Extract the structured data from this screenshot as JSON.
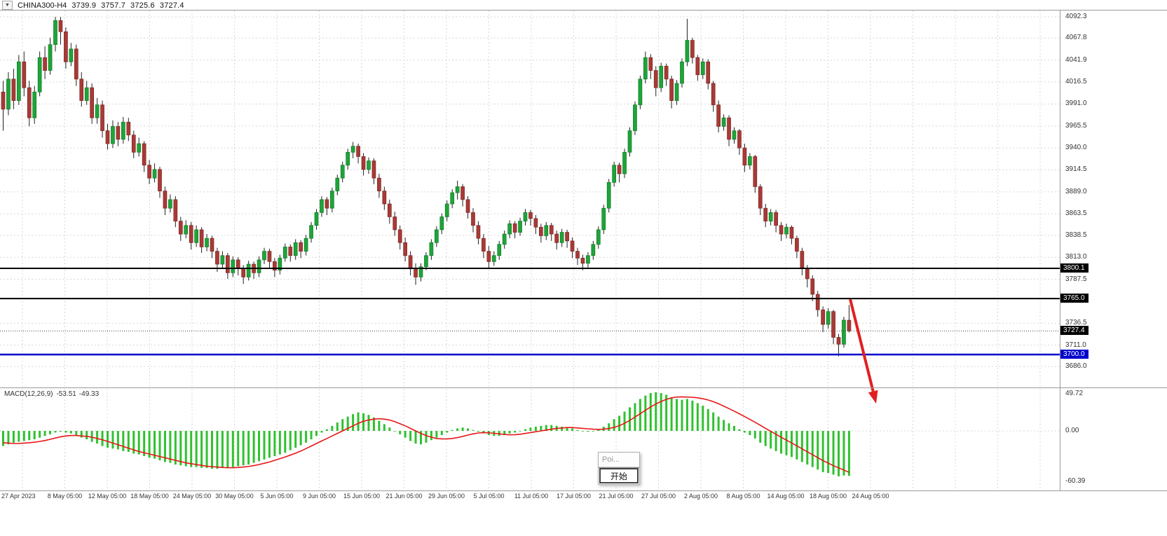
{
  "symbol_info": {
    "dropdown_icon": "▼",
    "symbol": "CHINA300-H4",
    "open": "3739.9",
    "high": "3757.7",
    "low": "3725.6",
    "close": "3727.4"
  },
  "price_scale": {
    "labels": [
      "4092.3",
      "4067.8",
      "4041.9",
      "4016.5",
      "3991.0",
      "3965.5",
      "3940.0",
      "3914.5",
      "3889.0",
      "3863.5",
      "3838.5",
      "3813.0",
      "3787.5",
      "3736.5",
      "3711.0",
      "3686.0"
    ],
    "badges": [
      {
        "value": "3800.1",
        "price": 3800.1,
        "color": "#000000"
      },
      {
        "value": "3765.0",
        "price": 3765.0,
        "color": "#000000"
      },
      {
        "value": "3727.4",
        "price": 3727.4,
        "color": "#000000"
      },
      {
        "value": "3700.0",
        "price": 3700.0,
        "color": "#0000CD"
      }
    ]
  },
  "macd": {
    "title": "MACD(12,26,9)",
    "value": "-53.51",
    "signal_value": "-49.33",
    "scale": {
      "top": "49.72",
      "zero": "0.00",
      "bottom": "-60.39"
    }
  },
  "popup": {
    "title": "Poi...",
    "button_label": "开始"
  },
  "colors": {
    "up_candle": "#1FA439",
    "up_candle_border": "#0F7A27",
    "down_candle": "#A93A36",
    "down_candle_border": "#7A2723",
    "wick": "#222222",
    "histogram": "#2FC12F",
    "signal_line": "#E81717",
    "grid": "#D8D8D8",
    "hline": "#000000",
    "support_line": "#0000CD",
    "arrow": "#E02020",
    "frame": "#9A9A9A",
    "current_price_line": "#444444"
  },
  "chart_data": {
    "type": "candlestick",
    "symbol": "CHINA300",
    "timeframe": "H4",
    "title": "CHINA300-H4",
    "ohlc_display": {
      "open": 3739.9,
      "high": 3757.7,
      "low": 3725.6,
      "close": 3727.4
    },
    "current_price": 3727.4,
    "ylim": [
      3660,
      4100
    ],
    "grid": true,
    "x_labels": [
      "27 Apr 2023",
      "8 May 05:00",
      "12 May 05:00",
      "18 May 05:00",
      "24 May 05:00",
      "30 May 05:00",
      "5 Jun 05:00",
      "9 Jun 05:00",
      "15 Jun 05:00",
      "21 Jun 05:00",
      "29 Jun 05:00",
      "5 Jul 05:00",
      "11 Jul 05:00",
      "17 Jul 05:00",
      "21 Jul 05:00",
      "27 Jul 05:00",
      "2 Aug 05:00",
      "8 Aug 05:00",
      "14 Aug 05:00",
      "18 Aug 05:00",
      "24 Aug 05:00"
    ],
    "horizontal_lines": [
      {
        "price": 3800.1,
        "color": "#000000",
        "width": 2,
        "label": "3800.1"
      },
      {
        "price": 3765.0,
        "color": "#000000",
        "width": 2,
        "label": "3765.0"
      },
      {
        "price": 3700.0,
        "color": "#0000CD",
        "width": 2.5,
        "label": "3700.0"
      }
    ],
    "annotations": [
      {
        "type": "arrow-down",
        "color": "#E02020",
        "meaning": "projected decline below support"
      }
    ],
    "candles": [
      [
        4005,
        4018,
        3960,
        3985
      ],
      [
        3985,
        4028,
        3978,
        4020
      ],
      [
        4020,
        4032,
        3985,
        3995
      ],
      [
        3995,
        4048,
        3990,
        4040
      ],
      [
        4040,
        4052,
        4000,
        4010
      ],
      [
        4010,
        4018,
        3965,
        3975
      ],
      [
        3975,
        4012,
        3968,
        4005
      ],
      [
        4005,
        4052,
        4000,
        4045
      ],
      [
        4045,
        4058,
        4020,
        4030
      ],
      [
        4030,
        4068,
        4025,
        4060
      ],
      [
        4060,
        4092.3,
        4052,
        4088
      ],
      [
        4088,
        4092,
        4060,
        4075
      ],
      [
        4075,
        4080,
        4032,
        4040
      ],
      [
        4040,
        4062,
        4035,
        4055
      ],
      [
        4055,
        4060,
        4012,
        4020
      ],
      [
        4020,
        4028,
        3988,
        3995
      ],
      [
        3995,
        4018,
        3990,
        4010
      ],
      [
        4010,
        4015,
        3968,
        3975
      ],
      [
        3975,
        3998,
        3968,
        3990
      ],
      [
        3990,
        3995,
        3952,
        3960
      ],
      [
        3960,
        3968,
        3938,
        3945
      ],
      [
        3945,
        3972,
        3940,
        3965
      ],
      [
        3965,
        3970,
        3942,
        3950
      ],
      [
        3950,
        3976,
        3945,
        3970
      ],
      [
        3970,
        3975,
        3948,
        3955
      ],
      [
        3955,
        3960,
        3928,
        3935
      ],
      [
        3935,
        3952,
        3930,
        3945
      ],
      [
        3945,
        3948,
        3912,
        3920
      ],
      [
        3920,
        3926,
        3898,
        3905
      ],
      [
        3905,
        3922,
        3900,
        3915
      ],
      [
        3915,
        3918,
        3882,
        3890
      ],
      [
        3890,
        3895,
        3862,
        3870
      ],
      [
        3870,
        3886,
        3865,
        3880
      ],
      [
        3880,
        3884,
        3848,
        3855
      ],
      [
        3855,
        3860,
        3832,
        3840
      ],
      [
        3840,
        3856,
        3835,
        3850
      ],
      [
        3850,
        3854,
        3822,
        3830
      ],
      [
        3830,
        3850,
        3825,
        3845
      ],
      [
        3845,
        3848,
        3818,
        3825
      ],
      [
        3825,
        3840,
        3820,
        3835
      ],
      [
        3835,
        3838,
        3812,
        3820
      ],
      [
        3820,
        3824,
        3796,
        3805
      ],
      [
        3805,
        3820,
        3800,
        3815
      ],
      [
        3815,
        3818,
        3788,
        3795
      ],
      [
        3795,
        3814,
        3790,
        3810
      ],
      [
        3810,
        3813,
        3792,
        3800
      ],
      [
        3800,
        3804,
        3782,
        3790
      ],
      [
        3790,
        3809,
        3786,
        3805
      ],
      [
        3805,
        3808,
        3788,
        3795
      ],
      [
        3795,
        3814,
        3790,
        3810
      ],
      [
        3810,
        3824,
        3805,
        3820
      ],
      [
        3820,
        3823,
        3800,
        3808
      ],
      [
        3808,
        3812,
        3790,
        3798
      ],
      [
        3798,
        3816,
        3793,
        3812
      ],
      [
        3812,
        3829,
        3808,
        3825
      ],
      [
        3825,
        3828,
        3808,
        3815
      ],
      [
        3815,
        3834,
        3810,
        3830
      ],
      [
        3830,
        3833,
        3812,
        3820
      ],
      [
        3820,
        3839,
        3815,
        3835
      ],
      [
        3835,
        3854,
        3830,
        3850
      ],
      [
        3850,
        3869,
        3845,
        3865
      ],
      [
        3865,
        3884,
        3860,
        3880
      ],
      [
        3880,
        3883,
        3862,
        3870
      ],
      [
        3870,
        3894,
        3865,
        3890
      ],
      [
        3890,
        3909,
        3885,
        3905
      ],
      [
        3905,
        3924,
        3900,
        3920
      ],
      [
        3920,
        3939,
        3915,
        3935
      ],
      [
        3935,
        3947,
        3928,
        3942
      ],
      [
        3942,
        3945,
        3922,
        3930
      ],
      [
        3930,
        3934,
        3908,
        3915
      ],
      [
        3915,
        3929,
        3910,
        3925
      ],
      [
        3925,
        3928,
        3898,
        3905
      ],
      [
        3905,
        3910,
        3882,
        3890
      ],
      [
        3890,
        3895,
        3868,
        3875
      ],
      [
        3875,
        3880,
        3852,
        3860
      ],
      [
        3860,
        3866,
        3838,
        3845
      ],
      [
        3845,
        3850,
        3822,
        3830
      ],
      [
        3830,
        3836,
        3808,
        3815
      ],
      [
        3815,
        3820,
        3792,
        3800
      ],
      [
        3800,
        3806,
        3781,
        3790
      ],
      [
        3790,
        3806,
        3785,
        3802
      ],
      [
        3802,
        3819,
        3798,
        3815
      ],
      [
        3815,
        3834,
        3810,
        3830
      ],
      [
        3830,
        3849,
        3825,
        3845
      ],
      [
        3845,
        3864,
        3840,
        3860
      ],
      [
        3860,
        3879,
        3855,
        3875
      ],
      [
        3875,
        3892,
        3870,
        3888
      ],
      [
        3888,
        3902,
        3880,
        3895
      ],
      [
        3895,
        3898,
        3872,
        3880
      ],
      [
        3880,
        3884,
        3858,
        3865
      ],
      [
        3865,
        3870,
        3842,
        3850
      ],
      [
        3850,
        3855,
        3828,
        3835
      ],
      [
        3835,
        3840,
        3812,
        3820
      ],
      [
        3820,
        3826,
        3800,
        3808
      ],
      [
        3808,
        3820,
        3803,
        3815
      ],
      [
        3815,
        3832,
        3810,
        3828
      ],
      [
        3828,
        3844,
        3823,
        3840
      ],
      [
        3840,
        3856,
        3835,
        3852
      ],
      [
        3852,
        3855,
        3835,
        3842
      ],
      [
        3842,
        3859,
        3838,
        3855
      ],
      [
        3855,
        3869,
        3850,
        3865
      ],
      [
        3865,
        3868,
        3850,
        3858
      ],
      [
        3858,
        3862,
        3840,
        3848
      ],
      [
        3848,
        3852,
        3830,
        3838
      ],
      [
        3838,
        3854,
        3833,
        3850
      ],
      [
        3850,
        3853,
        3832,
        3840
      ],
      [
        3840,
        3844,
        3822,
        3830
      ],
      [
        3830,
        3846,
        3825,
        3842
      ],
      [
        3842,
        3845,
        3824,
        3832
      ],
      [
        3832,
        3836,
        3812,
        3820
      ],
      [
        3820,
        3824,
        3804,
        3812
      ],
      [
        3812,
        3816,
        3798,
        3806
      ],
      [
        3806,
        3819,
        3801,
        3815
      ],
      [
        3815,
        3832,
        3810,
        3828
      ],
      [
        3828,
        3849,
        3823,
        3845
      ],
      [
        3845,
        3874,
        3840,
        3870
      ],
      [
        3870,
        3904,
        3865,
        3900
      ],
      [
        3900,
        3924,
        3895,
        3920
      ],
      [
        3920,
        3923,
        3900,
        3910
      ],
      [
        3910,
        3939,
        3905,
        3935
      ],
      [
        3935,
        3964,
        3930,
        3960
      ],
      [
        3960,
        3994,
        3955,
        3990
      ],
      [
        3990,
        4024,
        3985,
        4020
      ],
      [
        4020,
        4052,
        4015,
        4045
      ],
      [
        4045,
        4049,
        4020,
        4030
      ],
      [
        4030,
        4035,
        4000,
        4010
      ],
      [
        4010,
        4039,
        4005,
        4035
      ],
      [
        4035,
        4038,
        4012,
        4020
      ],
      [
        4020,
        4024,
        3986,
        3995
      ],
      [
        3995,
        4019,
        3990,
        4015
      ],
      [
        4015,
        4044,
        4010,
        4040
      ],
      [
        4040,
        4090,
        4035,
        4065
      ],
      [
        4065,
        4068,
        4038,
        4045
      ],
      [
        4045,
        4048,
        4018,
        4025
      ],
      [
        4025,
        4044,
        4020,
        4040
      ],
      [
        4040,
        4043,
        4008,
        4015
      ],
      [
        4015,
        4018,
        3982,
        3990
      ],
      [
        3990,
        3995,
        3958,
        3965
      ],
      [
        3965,
        3979,
        3960,
        3975
      ],
      [
        3975,
        3978,
        3942,
        3950
      ],
      [
        3950,
        3964,
        3945,
        3960
      ],
      [
        3960,
        3962,
        3932,
        3940
      ],
      [
        3940,
        3945,
        3912,
        3920
      ],
      [
        3920,
        3934,
        3915,
        3930
      ],
      [
        3930,
        3932,
        3888,
        3895
      ],
      [
        3895,
        3898,
        3862,
        3870
      ],
      [
        3870,
        3875,
        3848,
        3855
      ],
      [
        3855,
        3869,
        3850,
        3865
      ],
      [
        3865,
        3868,
        3842,
        3850
      ],
      [
        3850,
        3854,
        3832,
        3840
      ],
      [
        3840,
        3852,
        3835,
        3848
      ],
      [
        3848,
        3850,
        3828,
        3835
      ],
      [
        3835,
        3838,
        3812,
        3820
      ],
      [
        3820,
        3824,
        3792,
        3800
      ],
      [
        3800,
        3804,
        3778,
        3788
      ],
      [
        3788,
        3792,
        3762,
        3770
      ],
      [
        3770,
        3774,
        3744,
        3752
      ],
      [
        3752,
        3756,
        3726,
        3735
      ],
      [
        3735,
        3754,
        3730,
        3750
      ],
      [
        3750,
        3752,
        3712,
        3720
      ],
      [
        3720,
        3724,
        3698,
        3712
      ],
      [
        3712,
        3744,
        3708,
        3740
      ],
      [
        3739.9,
        3757.7,
        3725.6,
        3727.4
      ]
    ],
    "indicator": {
      "name": "MACD(12,26,9)",
      "macd_value": -53.51,
      "signal_value": -49.33,
      "ylim": [
        -60.39,
        49.72
      ],
      "histogram": [
        -18,
        -16,
        -14,
        -13,
        -12,
        -11,
        -10,
        -8,
        -6,
        -4,
        -2,
        -1,
        -2,
        -3,
        -5,
        -8,
        -10,
        -13,
        -15,
        -18,
        -20,
        -21,
        -22,
        -24,
        -25,
        -27,
        -28,
        -30,
        -32,
        -33,
        -35,
        -37,
        -38,
        -40,
        -41,
        -42,
        -43,
        -43,
        -44,
        -44,
        -45,
        -45,
        -44,
        -44,
        -43,
        -42,
        -41,
        -40,
        -38,
        -36,
        -34,
        -32,
        -30,
        -28,
        -26,
        -23,
        -20,
        -17,
        -14,
        -10,
        -6,
        -2,
        2,
        6,
        10,
        14,
        17,
        20,
        22,
        21,
        19,
        16,
        12,
        8,
        4,
        0,
        -4,
        -8,
        -12,
        -15,
        -16,
        -14,
        -11,
        -8,
        -5,
        -2,
        1,
        3,
        4,
        3,
        1,
        -1,
        -3,
        -5,
        -6,
        -6,
        -5,
        -3,
        -2,
        0,
        2,
        4,
        5,
        6,
        7,
        7,
        6,
        5,
        4,
        3,
        1,
        0,
        -1,
        0,
        2,
        5,
        9,
        14,
        18,
        23,
        28,
        33,
        38,
        42,
        45,
        46,
        45,
        43,
        40,
        38,
        37,
        38,
        36,
        33,
        30,
        26,
        22,
        17,
        13,
        9,
        6,
        2,
        -2,
        -5,
        -9,
        -14,
        -18,
        -21,
        -24,
        -27,
        -29,
        -31,
        -34,
        -37,
        -40,
        -43,
        -46,
        -49,
        -50,
        -52,
        -54,
        -53,
        -53.51
      ],
      "signal": [
        -14,
        -14.5,
        -15,
        -15,
        -14.5,
        -14,
        -13.5,
        -12.5,
        -11.5,
        -10,
        -8.5,
        -7,
        -6,
        -5.5,
        -5.5,
        -6,
        -6.5,
        -7.5,
        -9,
        -10.5,
        -12.5,
        -14.5,
        -16.5,
        -18.5,
        -20.5,
        -22.5,
        -24.5,
        -26,
        -27.5,
        -29,
        -30.5,
        -32,
        -33.5,
        -35,
        -36.5,
        -38,
        -39,
        -40,
        -41,
        -42,
        -42.5,
        -43,
        -43.5,
        -43.8,
        -43.8,
        -43.5,
        -43,
        -42.3,
        -41.3,
        -40,
        -38.5,
        -37,
        -35,
        -33,
        -31,
        -28.8,
        -26.5,
        -24,
        -21,
        -18,
        -15,
        -12,
        -9,
        -6,
        -3,
        0,
        3,
        6,
        9,
        11.5,
        13,
        14,
        14.5,
        14,
        13,
        11,
        8.5,
        6,
        3,
        0,
        -3,
        -5.5,
        -7.5,
        -9,
        -9.5,
        -9.5,
        -9,
        -8,
        -6.5,
        -5,
        -3.5,
        -2.5,
        -2,
        -2.2,
        -2.8,
        -3.5,
        -4.2,
        -4.6,
        -4.5,
        -4,
        -3,
        -2,
        -1,
        0,
        1,
        2,
        3,
        3.5,
        4,
        4,
        3.5,
        3,
        2.5,
        2,
        1.8,
        2,
        2.8,
        4.2,
        6.2,
        9,
        12.5,
        16.5,
        20.5,
        24.5,
        28.5,
        32,
        35,
        37.5,
        39.3,
        40.3,
        40.5,
        40.3,
        40,
        39.3,
        38.3,
        36.8,
        34.8,
        32.3,
        29.5,
        26.5,
        23.5,
        20.3,
        17,
        13.7,
        10.3,
        6.7,
        3,
        -0.5,
        -4,
        -7.5,
        -11,
        -14.3,
        -17.8,
        -21.3,
        -24.8,
        -28.3,
        -31.8,
        -35.3,
        -38.3,
        -41.3,
        -44,
        -46.5,
        -49.33
      ]
    }
  }
}
